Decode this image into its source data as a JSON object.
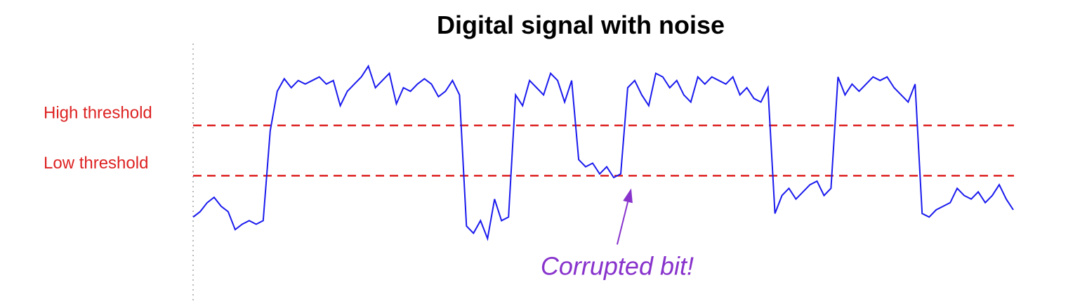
{
  "chart_data": {
    "type": "line",
    "title": "Digital signal with noise",
    "xlabel": "",
    "ylabel": "",
    "xlim": [
      0,
      117
    ],
    "ylim": [
      0,
      1
    ],
    "colors": {
      "signal": "#1a1aee",
      "threshold": "#dd2222",
      "annotation": "#8833cc",
      "axis": "#bbbbbb"
    },
    "thresholds": [
      {
        "name": "High threshold",
        "value": 0.63
      },
      {
        "name": "Low threshold",
        "value": 0.35
      }
    ],
    "annotation": {
      "text": "Corrupted bit!",
      "target_x": 62.5,
      "target_y": 0.28
    },
    "series": [
      {
        "name": "signal",
        "x": [
          0,
          1,
          2,
          3,
          4,
          5,
          6,
          7,
          8,
          9,
          10,
          11,
          12,
          13,
          14,
          15,
          16,
          17,
          18,
          19,
          20,
          21,
          22,
          23,
          24,
          25,
          26,
          27,
          28,
          29,
          30,
          31,
          32,
          33,
          34,
          35,
          36,
          37,
          38,
          39,
          40,
          41,
          42,
          43,
          44,
          45,
          46,
          47,
          48,
          49,
          50,
          51,
          52,
          53,
          54,
          55,
          56,
          57,
          58,
          59,
          60,
          61,
          62,
          63,
          64,
          65,
          66,
          67,
          68,
          69,
          70,
          71,
          72,
          73,
          74,
          75,
          76,
          77,
          78,
          79,
          80,
          81,
          82,
          83,
          84,
          85,
          86,
          87,
          88,
          89,
          90,
          91,
          92,
          93,
          94,
          95,
          96,
          97,
          98,
          99,
          100,
          101,
          102,
          103,
          104,
          105,
          106,
          107,
          108,
          109,
          110,
          111,
          112,
          113,
          114,
          115,
          116,
          117
        ],
        "values": [
          0.12,
          0.15,
          0.2,
          0.23,
          0.18,
          0.15,
          0.05,
          0.08,
          0.1,
          0.08,
          0.1,
          0.6,
          0.82,
          0.89,
          0.84,
          0.88,
          0.86,
          0.88,
          0.9,
          0.86,
          0.88,
          0.74,
          0.82,
          0.86,
          0.9,
          0.96,
          0.84,
          0.88,
          0.92,
          0.75,
          0.84,
          0.82,
          0.86,
          0.89,
          0.86,
          0.79,
          0.82,
          0.88,
          0.8,
          0.07,
          0.03,
          0.1,
          0.0,
          0.22,
          0.1,
          0.12,
          0.8,
          0.74,
          0.88,
          0.84,
          0.8,
          0.92,
          0.88,
          0.76,
          0.88,
          0.44,
          0.4,
          0.42,
          0.36,
          0.4,
          0.34,
          0.36,
          0.84,
          0.88,
          0.8,
          0.74,
          0.92,
          0.9,
          0.84,
          0.88,
          0.8,
          0.76,
          0.9,
          0.86,
          0.9,
          0.88,
          0.86,
          0.9,
          0.8,
          0.84,
          0.78,
          0.76,
          0.84,
          0.14,
          0.24,
          0.28,
          0.22,
          0.26,
          0.3,
          0.32,
          0.24,
          0.28,
          0.9,
          0.8,
          0.86,
          0.82,
          0.86,
          0.9,
          0.88,
          0.9,
          0.84,
          0.8,
          0.76,
          0.86,
          0.14,
          0.12,
          0.16,
          0.18,
          0.2,
          0.28,
          0.24,
          0.22,
          0.26,
          0.2,
          0.24,
          0.3,
          0.22,
          0.16
        ]
      }
    ]
  }
}
